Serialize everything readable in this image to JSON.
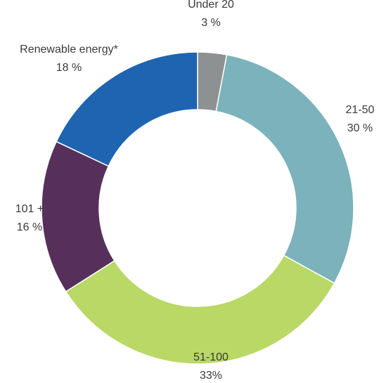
{
  "chart_data": {
    "type": "donut",
    "categories": [
      "Under 20",
      "21-50",
      "51-100",
      "101 +",
      "Renewable energy*"
    ],
    "values": [
      3,
      30,
      33,
      16,
      18
    ],
    "value_labels": [
      "3 %",
      "30 %",
      "33%",
      "16 %",
      "18 %"
    ],
    "colors": [
      "#8e9192",
      "#7bb2bb",
      "#b9d865",
      "#56305b",
      "#1f64b0"
    ]
  }
}
